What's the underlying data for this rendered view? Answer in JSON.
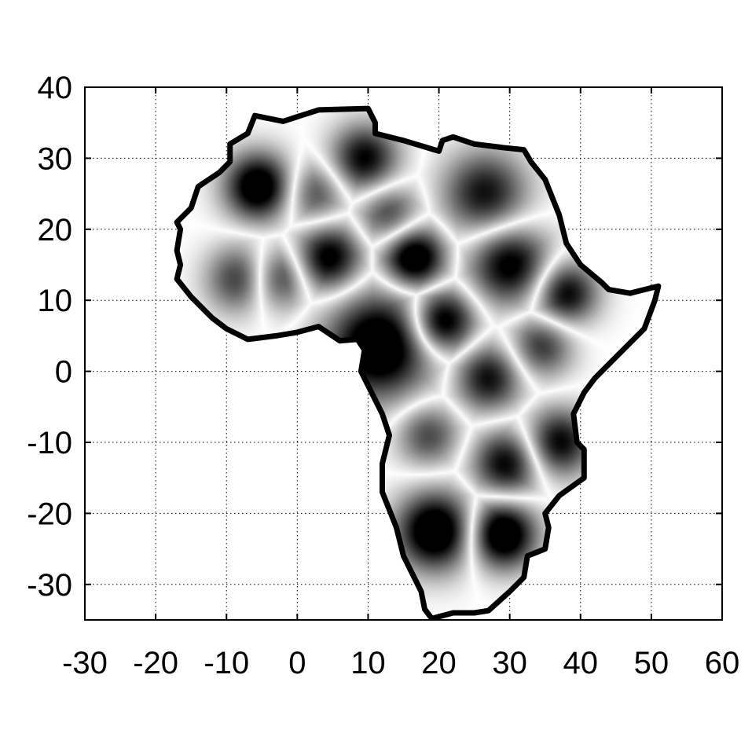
{
  "chart_data": {
    "type": "heatmap",
    "title": "",
    "xlabel": "",
    "ylabel": "",
    "xlim": [
      -30,
      60
    ],
    "ylim": [
      -35,
      40
    ],
    "xticks": [
      -30,
      -20,
      -10,
      0,
      10,
      20,
      30,
      40,
      50,
      60
    ],
    "yticks": [
      -30,
      -20,
      -10,
      0,
      10,
      20,
      30,
      40
    ],
    "xtick_labels": [
      "-30",
      "-20",
      "-10",
      "0",
      "10",
      "20",
      "30",
      "40",
      "50",
      "60"
    ],
    "ytick_labels": [
      "-30",
      "-20",
      "-10",
      "0",
      "10",
      "20",
      "30",
      "40"
    ],
    "grid": true,
    "colormap": "white-to-black (oscillating field, bright ridges between dark lobes)",
    "outline": "Africa coastline",
    "coastline": [
      [
        -6,
        36
      ],
      [
        -2,
        35.2
      ],
      [
        3,
        36.8
      ],
      [
        10,
        37
      ],
      [
        11,
        35
      ],
      [
        11,
        33.5
      ],
      [
        15,
        32.5
      ],
      [
        20,
        31
      ],
      [
        20.5,
        32.5
      ],
      [
        22,
        33
      ],
      [
        25,
        32
      ],
      [
        29,
        31.5
      ],
      [
        32,
        31.2
      ],
      [
        33,
        29.5
      ],
      [
        35,
        27
      ],
      [
        37,
        22
      ],
      [
        38,
        18
      ],
      [
        40,
        15
      ],
      [
        43,
        12.5
      ],
      [
        44,
        11.5
      ],
      [
        47,
        11
      ],
      [
        51,
        12
      ],
      [
        50.5,
        10
      ],
      [
        49,
        6
      ],
      [
        45,
        2
      ],
      [
        42,
        -1
      ],
      [
        40.5,
        -3
      ],
      [
        39,
        -6
      ],
      [
        39.5,
        -10
      ],
      [
        40.5,
        -11
      ],
      [
        40.5,
        -15
      ],
      [
        37,
        -17.5
      ],
      [
        35,
        -20
      ],
      [
        35.5,
        -22
      ],
      [
        35,
        -25
      ],
      [
        32.5,
        -26
      ],
      [
        32,
        -29
      ],
      [
        30,
        -31
      ],
      [
        27,
        -33.7
      ],
      [
        25,
        -34
      ],
      [
        22,
        -34
      ],
      [
        19,
        -34.8
      ],
      [
        18,
        -33.5
      ],
      [
        17.5,
        -31
      ],
      [
        16,
        -28
      ],
      [
        15,
        -26
      ],
      [
        14,
        -22
      ],
      [
        12,
        -17
      ],
      [
        12,
        -13
      ],
      [
        13,
        -9
      ],
      [
        12,
        -6
      ],
      [
        10,
        -2
      ],
      [
        9,
        0
      ],
      [
        9.5,
        3
      ],
      [
        8.5,
        4.5
      ],
      [
        6,
        4.3
      ],
      [
        3,
        6.3
      ],
      [
        0,
        5.5
      ],
      [
        -3,
        5
      ],
      [
        -7,
        4.5
      ],
      [
        -10,
        6
      ],
      [
        -12,
        7.5
      ],
      [
        -13,
        8.5
      ],
      [
        -15,
        10.5
      ],
      [
        -17,
        13
      ],
      [
        -16.5,
        15
      ],
      [
        -17,
        17
      ],
      [
        -16.5,
        20
      ],
      [
        -17,
        21
      ],
      [
        -15,
        23
      ],
      [
        -14,
        26
      ],
      [
        -11,
        28
      ],
      [
        -9.5,
        29.5
      ],
      [
        -9.5,
        32
      ],
      [
        -7,
        33.5
      ],
      [
        -6,
        36
      ]
    ],
    "field_centers": [
      {
        "x": 11.5,
        "y": 3.5,
        "intensity": 1.0,
        "size": 5.0
      },
      {
        "x": 19.5,
        "y": -22.5,
        "intensity": 1.0,
        "size": 3.7
      },
      {
        "x": 29,
        "y": -23,
        "intensity": 1.0,
        "size": 3.2
      },
      {
        "x": -5.5,
        "y": 26,
        "intensity": 0.95,
        "size": 3.2
      },
      {
        "x": 16.5,
        "y": 16,
        "intensity": 0.95,
        "size": 3.0
      },
      {
        "x": 20.5,
        "y": 7,
        "intensity": 0.9,
        "size": 3.0
      },
      {
        "x": 4.5,
        "y": 16,
        "intensity": 0.8,
        "size": 3.2
      },
      {
        "x": 9.5,
        "y": 30,
        "intensity": 0.75,
        "size": 3.2
      },
      {
        "x": 26.5,
        "y": 25,
        "intensity": 0.7,
        "size": 4.0
      },
      {
        "x": 30,
        "y": 15,
        "intensity": 0.8,
        "size": 3.8
      },
      {
        "x": 38,
        "y": 11,
        "intensity": 0.75,
        "size": 3.0
      },
      {
        "x": 34.5,
        "y": 3.5,
        "intensity": 0.55,
        "size": 3.0
      },
      {
        "x": 27,
        "y": -1,
        "intensity": 0.7,
        "size": 3.2
      },
      {
        "x": 37,
        "y": -10,
        "intensity": 0.75,
        "size": 3.2
      },
      {
        "x": 29.5,
        "y": -13,
        "intensity": 0.75,
        "size": 3.2
      },
      {
        "x": 18.5,
        "y": -9,
        "intensity": 0.5,
        "size": 3.0
      },
      {
        "x": -8,
        "y": 13,
        "intensity": 0.6,
        "size": 3.2
      },
      {
        "x": -3,
        "y": 13,
        "intensity": 0.55,
        "size": 3.0
      },
      {
        "x": 2.5,
        "y": 25,
        "intensity": 0.45,
        "size": 3.0
      },
      {
        "x": 13,
        "y": 22,
        "intensity": 0.5,
        "size": 3.0
      }
    ]
  }
}
